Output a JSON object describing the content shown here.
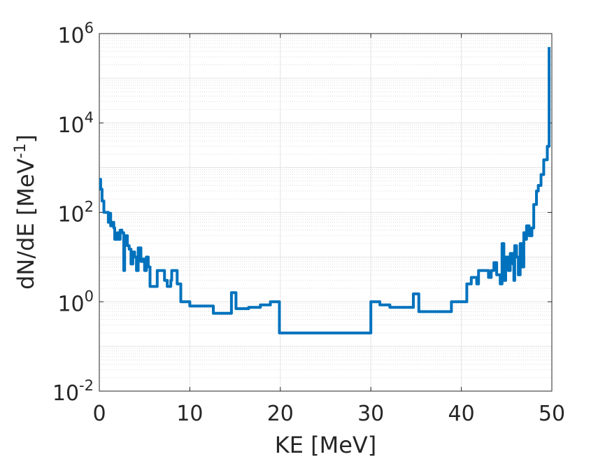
{
  "chart_data": {
    "type": "line",
    "style": "stairs",
    "xlabel": "KE [MeV]",
    "ylabel": "dN/dE [MeV",
    "ylabel_sup": "-1",
    "ylabel_close": "]",
    "xlim": [
      0,
      50
    ],
    "ylim": [
      0.01,
      1000000
    ],
    "yscale": "log",
    "grid": true,
    "minor_grid": true,
    "line_color": "#0072BD",
    "x_ticks": [
      0,
      10,
      20,
      30,
      40,
      50
    ],
    "x_tick_labels": [
      "0",
      "10",
      "20",
      "30",
      "40",
      "50"
    ],
    "y_ticks": [
      0.01,
      1,
      100,
      10000,
      1000000
    ],
    "y_tick_base": "10",
    "y_tick_exponents": [
      "-2",
      "0",
      "2",
      "4",
      "6"
    ],
    "series": [
      {
        "points": [
          [
            0,
            550
          ],
          [
            0.15,
            330
          ],
          [
            0.3,
            180
          ],
          [
            0.5,
            100
          ],
          [
            0.9,
            100
          ],
          [
            1.0,
            60
          ],
          [
            1.1,
            95
          ],
          [
            1.25,
            50
          ],
          [
            1.4,
            60
          ],
          [
            1.6,
            45
          ],
          [
            1.7,
            25
          ],
          [
            2.0,
            35
          ],
          [
            2.1,
            25
          ],
          [
            2.3,
            40
          ],
          [
            2.5,
            35
          ],
          [
            2.7,
            5
          ],
          [
            2.8,
            30
          ],
          [
            3.1,
            18
          ],
          [
            3.3,
            15
          ],
          [
            3.5,
            7
          ],
          [
            3.7,
            13
          ],
          [
            3.9,
            10
          ],
          [
            4.1,
            5
          ],
          [
            4.3,
            16
          ],
          [
            4.6,
            8
          ],
          [
            4.8,
            9
          ],
          [
            5.0,
            5
          ],
          [
            5.2,
            10
          ],
          [
            5.4,
            6
          ],
          [
            5.6,
            2.2
          ],
          [
            6.2,
            2.2
          ],
          [
            6.4,
            5
          ],
          [
            7.2,
            3
          ],
          [
            7.5,
            2.2
          ],
          [
            7.9,
            3
          ],
          [
            8.0,
            5
          ],
          [
            8.6,
            2.5
          ],
          [
            9.0,
            1
          ],
          [
            10.0,
            0.8
          ],
          [
            12.6,
            0.55
          ],
          [
            14.6,
            1.6
          ],
          [
            15.1,
            0.7
          ],
          [
            16.5,
            0.75
          ],
          [
            17.8,
            0.85
          ],
          [
            18.9,
            1
          ],
          [
            19.9,
            0.2
          ],
          [
            30.0,
            1
          ],
          [
            31.0,
            0.85
          ],
          [
            32.1,
            0.75
          ],
          [
            34.7,
            1.5
          ],
          [
            35.3,
            0.6
          ],
          [
            38.9,
            1
          ],
          [
            40.6,
            2.5
          ],
          [
            41.1,
            3.5
          ],
          [
            41.7,
            2.5
          ],
          [
            41.9,
            5
          ],
          [
            43.0,
            3.5
          ],
          [
            43.3,
            5
          ],
          [
            43.6,
            7.5
          ],
          [
            43.9,
            4
          ],
          [
            44.3,
            2.5
          ],
          [
            44.5,
            20
          ],
          [
            44.7,
            3
          ],
          [
            44.9,
            10
          ],
          [
            45.2,
            5
          ],
          [
            45.4,
            12
          ],
          [
            45.7,
            7
          ],
          [
            45.8,
            3
          ],
          [
            45.9,
            18
          ],
          [
            46.1,
            10
          ],
          [
            46.3,
            4
          ],
          [
            46.5,
            20
          ],
          [
            46.7,
            6
          ],
          [
            46.9,
            35
          ],
          [
            47.1,
            25
          ],
          [
            47.2,
            50
          ],
          [
            47.5,
            30
          ],
          [
            47.8,
            45
          ],
          [
            48.0,
            150
          ],
          [
            48.3,
            300
          ],
          [
            48.5,
            400
          ],
          [
            48.8,
            700
          ],
          [
            49.1,
            1500
          ],
          [
            49.5,
            3000
          ],
          [
            49.7,
            500000
          ]
        ],
        "x_end": 49.7
      }
    ]
  }
}
